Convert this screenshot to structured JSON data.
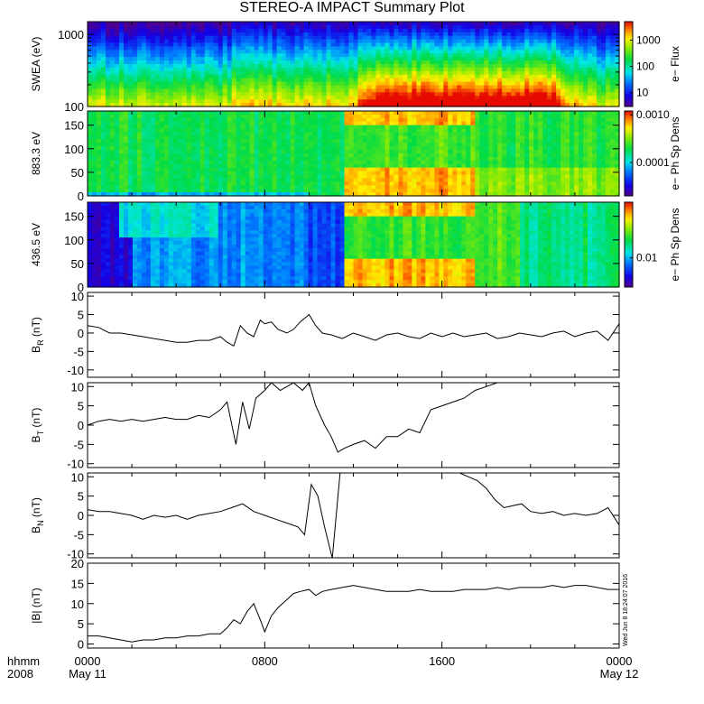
{
  "title": "STEREO-A IMPACT Summary Plot",
  "timestamp": "Wed Jun  8 18:24:07 2016",
  "time_axis": {
    "row1_label": "hhmm",
    "row2_label": "2008",
    "ticks": [
      {
        "t": 0,
        "hhmm": "0000",
        "date": "May 11"
      },
      {
        "t": 8,
        "hhmm": "0800",
        "date": ""
      },
      {
        "t": 16,
        "hhmm": "1600",
        "date": ""
      },
      {
        "t": 24,
        "hhmm": "0000",
        "date": "May 12"
      }
    ]
  },
  "chart_data": [
    {
      "type": "heatmap",
      "panel": "swea",
      "ylabel": "SWEA (eV)",
      "yscale": "log",
      "ylim": [
        100,
        1500
      ],
      "yticks": [
        100,
        1000
      ],
      "ytick_labels": [
        "100",
        "1000"
      ],
      "colorbar": {
        "label": "e− Flux",
        "scale": "log",
        "range": [
          3,
          5000
        ],
        "ticks": [
          10,
          100,
          1000
        ],
        "tick_labels": [
          "10",
          "100",
          "1000"
        ]
      },
      "x_range_hours": [
        0,
        24
      ],
      "hot_band_hours": [
        12.5,
        21.5
      ]
    },
    {
      "type": "heatmap",
      "panel": "pad_883",
      "ylabel": "883.3 eV",
      "ylim": [
        0,
        180
      ],
      "yticks": [
        0,
        50,
        100,
        150
      ],
      "colorbar": {
        "label": "e− Ph Sp Dens",
        "scale": "log",
        "range": [
          2e-05,
          0.0012
        ],
        "ticks": [
          0.0001,
          0.001
        ],
        "tick_labels": [
          "0.0001",
          "0.0010"
        ]
      },
      "x_range_hours": [
        0,
        24
      ]
    },
    {
      "type": "heatmap",
      "panel": "pad_436",
      "ylabel": "436.5 eV",
      "ylim": [
        0,
        180
      ],
      "yticks": [
        0,
        50,
        100,
        150
      ],
      "colorbar": {
        "label": "e− Ph Sp Dens",
        "scale": "log",
        "range": [
          0.003,
          0.1
        ],
        "ticks": [
          0.01
        ],
        "tick_labels": [
          "0.01"
        ]
      },
      "x_range_hours": [
        0,
        24
      ]
    },
    {
      "type": "line",
      "panel": "br",
      "ylabel_main": "B",
      "ylabel_sub": "R",
      "ylabel_unit": " (nT)",
      "ylim": [
        -12,
        11
      ],
      "yticks": [
        -10,
        -5,
        0,
        5,
        10
      ],
      "x": [
        0,
        0.5,
        1,
        1.5,
        2,
        2.5,
        3,
        3.5,
        4,
        4.5,
        5,
        5.5,
        6,
        6.3,
        6.6,
        6.9,
        7.2,
        7.5,
        7.8,
        8,
        8.3,
        8.6,
        9,
        9.3,
        9.6,
        10,
        10.3,
        10.6,
        11,
        11.5,
        12,
        12.5,
        13,
        13.5,
        14,
        14.5,
        15,
        15.5,
        16,
        16.5,
        17,
        17.5,
        18,
        18.5,
        19,
        19.5,
        20,
        20.5,
        21,
        21.5,
        22,
        22.5,
        23,
        23.5,
        24
      ],
      "y": [
        2,
        1.5,
        0,
        0,
        -0.5,
        -1,
        -1.5,
        -2,
        -2.5,
        -2.5,
        -2,
        -2,
        -1,
        -2.5,
        -3.5,
        2,
        0,
        -1,
        3.5,
        2.5,
        3,
        1,
        0,
        1,
        3,
        5,
        2,
        0,
        -0.5,
        -1.5,
        0,
        -1,
        -2,
        -0.5,
        0,
        -1,
        -1.5,
        0,
        -1,
        0,
        -1,
        -0.5,
        0,
        -1.5,
        -1,
        0,
        -0.5,
        -1,
        0,
        0.5,
        -1,
        0,
        0.5,
        -2,
        2.5
      ]
    },
    {
      "type": "line",
      "panel": "bt",
      "ylabel_main": "B",
      "ylabel_sub": "T",
      "ylabel_unit": " (nT)",
      "ylim": [
        -11,
        11
      ],
      "yticks": [
        -10,
        -5,
        0,
        5,
        10
      ],
      "x": [
        0,
        0.5,
        1,
        1.5,
        2,
        2.5,
        3,
        3.5,
        4,
        4.5,
        5,
        5.5,
        6,
        6.3,
        6.7,
        7,
        7.3,
        7.6,
        8,
        8.3,
        8.7,
        9,
        9.3,
        9.7,
        10,
        10.3,
        10.7,
        11,
        11.3,
        11.6,
        12,
        12.5,
        13,
        13.5,
        14,
        14.5,
        15,
        15.5,
        16,
        16.5,
        17,
        17.5,
        18,
        18.5,
        19,
        19.5,
        20,
        20.5,
        21,
        21.5,
        22,
        22.5,
        23,
        23.5,
        24
      ],
      "y": [
        0,
        1,
        1.5,
        1,
        1.5,
        1,
        1.5,
        2,
        1.5,
        1.5,
        2.5,
        2,
        4,
        6,
        -5,
        6,
        -1,
        7,
        9,
        11,
        9,
        10,
        11,
        9,
        11,
        5,
        0,
        -3,
        -7,
        -6,
        -5,
        -4,
        -6,
        -3,
        -3,
        -1,
        -2,
        4,
        5,
        6,
        7,
        9,
        10,
        11,
        11,
        11,
        11,
        11,
        11,
        11,
        11,
        11,
        11,
        11,
        11
      ]
    },
    {
      "type": "line",
      "panel": "bn",
      "ylabel_main": "B",
      "ylabel_sub": "N",
      "ylabel_unit": " (nT)",
      "ylim": [
        -11,
        11
      ],
      "yticks": [
        -10,
        -5,
        0,
        5,
        10
      ],
      "x": [
        0,
        0.5,
        1,
        1.5,
        2,
        2.5,
        3,
        3.5,
        4,
        4.5,
        5,
        5.5,
        6,
        6.5,
        7,
        7.5,
        8,
        8.5,
        9,
        9.5,
        9.8,
        10.1,
        10.4,
        10.7,
        11,
        11.05,
        11.4,
        11.7,
        12,
        14,
        16,
        16.8,
        17.2,
        17.6,
        18,
        18.4,
        18.8,
        19.2,
        19.6,
        20,
        20.5,
        21,
        21.5,
        22,
        22.5,
        23,
        23.5,
        24
      ],
      "y": [
        1.5,
        1,
        1,
        0.5,
        0,
        -1,
        0,
        -0.5,
        0,
        -1,
        0,
        0.5,
        1,
        2,
        3,
        1,
        0,
        -1,
        -2,
        -3,
        -5,
        8,
        5,
        -3,
        -10,
        -11,
        11,
        11,
        11,
        11,
        11,
        11,
        10,
        9,
        7,
        4,
        2,
        2.5,
        3,
        1,
        0.5,
        1,
        0,
        0.5,
        0,
        0.5,
        2,
        -2.5
      ]
    },
    {
      "type": "line",
      "panel": "bmag",
      "ylabel_main": "|B| (nT)",
      "ylim": [
        -1,
        20
      ],
      "yticks": [
        0,
        5,
        10,
        15,
        20
      ],
      "x": [
        0,
        0.5,
        1,
        1.5,
        2,
        2.5,
        3,
        3.5,
        4,
        4.5,
        5,
        5.5,
        6,
        6.3,
        6.6,
        6.9,
        7.2,
        7.5,
        7.8,
        8,
        8.3,
        8.6,
        9,
        9.3,
        9.6,
        10,
        10.3,
        10.6,
        11,
        11.5,
        12,
        12.5,
        13,
        13.5,
        14,
        14.5,
        15,
        15.5,
        16,
        16.5,
        17,
        17.5,
        18,
        18.5,
        19,
        19.5,
        20,
        20.5,
        21,
        21.5,
        22,
        22.5,
        23,
        23.5,
        24
      ],
      "y": [
        2,
        2,
        1.5,
        1,
        0.5,
        1,
        1,
        1.5,
        1.5,
        2,
        2,
        2.5,
        2.5,
        4,
        6,
        5,
        8,
        10,
        6,
        3,
        7,
        9,
        11,
        12.5,
        13,
        13.5,
        12,
        13,
        13.5,
        14,
        14.5,
        14,
        13.5,
        13,
        13,
        13,
        13.5,
        13,
        13,
        13,
        13.5,
        13.5,
        13.5,
        14,
        13.5,
        14,
        14,
        14,
        14.5,
        14,
        14.5,
        14.5,
        14,
        13.5,
        13.5
      ]
    }
  ]
}
